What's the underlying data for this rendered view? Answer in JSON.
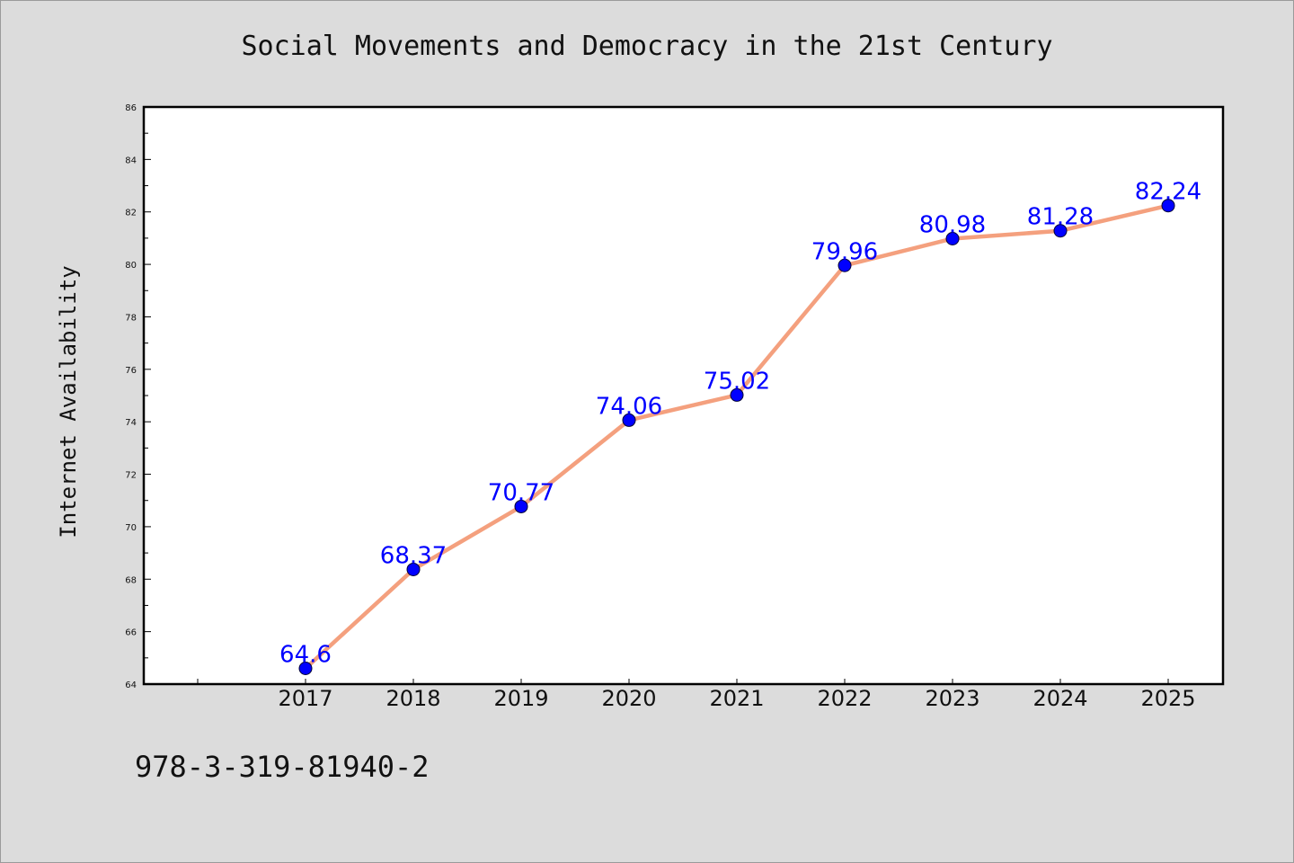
{
  "page": {
    "title": "Social Movements and Democracy in the 21st Century",
    "footer_text": "978-3-319-81940-2"
  },
  "colors": {
    "background": "#dcdcdc",
    "plot_background": "#ffffff",
    "line": "#f4a07e",
    "marker": "#0000ff",
    "label": "#0000ff"
  },
  "chart_data": {
    "type": "line",
    "title": "Social Movements and Democracy in the 21st Century",
    "xlabel": "",
    "ylabel": "Internet Availability",
    "x": [
      "2017",
      "2018",
      "2019",
      "2020",
      "2021",
      "2022",
      "2023",
      "2024",
      "2025"
    ],
    "series": [
      {
        "values": [
          64.6,
          68.37,
          70.77,
          74.06,
          75.02,
          79.96,
          80.98,
          81.28,
          82.24
        ],
        "data_labels": [
          "64.6",
          "68.37",
          "70.77",
          "74.06",
          "75.02",
          "79.96",
          "80.98",
          "81.28",
          "82.24"
        ]
      }
    ],
    "ylim": [
      64,
      86
    ],
    "yticks": [
      "64",
      "66",
      "68",
      "70",
      "72",
      "74",
      "76",
      "78",
      "80",
      "82",
      "84",
      "86"
    ],
    "grid": false,
    "legend": "none"
  }
}
